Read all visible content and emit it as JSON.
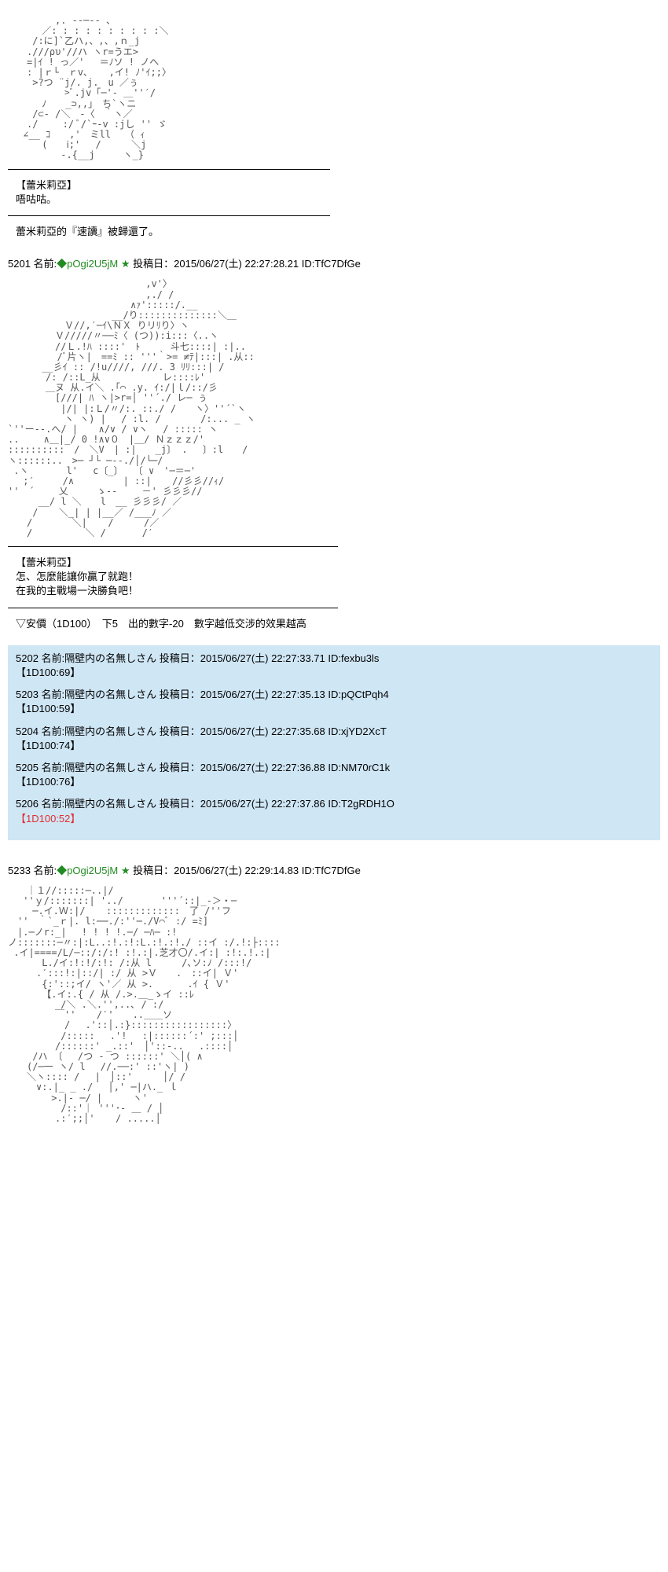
{
  "art1": "　　　　　,. --─-- 、\n　　　 ／: : : : : : : : : :＼\n　　 /:に]`乙ハ,、,、,ｎ_j\n　　.///ρυ'//ハ ヽr=うエ>\n　　=|ｲ ! っ／'　 ＝ﾉソ ! ノへ\n　　: |ｒ└　ｒv､ 　 ,イ! ﾉ'ｲ;;〉\n　　 >?つ ¨j/. j.　u ／ぅ\n　　　　　　>ﾞ.jv「─'- ＿''′/\n　　　 ﾉ　　_⊃,,｣　ち`ヽニ\n　　 /⊂- /＼　-〈　｀ヽ／\n　　./ 　　:/ ﾞ/`ｰ-v :jし '' ゞ\n　 ∠__ ｺ　　,'　ミll　　（ ｨ\n　　　 (　　ⅰ;'　 / 　　 ＼j\n　　　　 　-.{__j　　　ヽ_}",
  "char1_name": "【蕾米莉亞】",
  "char1_line": "唔咕咕。",
  "narration1": "蕾米莉亞的『速讀』被歸還了。",
  "post5201": {
    "num": "5201",
    "name_label": "名前:",
    "trip": "◆pOgi2U5jM",
    "star": "★",
    "date_label": "投稿日：",
    "date": "2015/06/27(土) 22:27:28.21",
    "id": "ID:TfC7DfGe"
  },
  "art2": "　　　　　　　　　　　　　　 ,v'〉\n　　　　　　　　　　　　　　 ,./ /\n　　　　　　　　　　　　　∧ｧ':::::/.__\n　　　　　　　　　　　__/り::::::::::::::＼＿\n　　　　　　Ｖ//,′─ｲ\\ＮＸ りリﾘり〉ヽ\n　　　　　Ｖ/////〃──ﾐ〈 (つ)):i:::〈..ヽ\n　　　　　//Ｌ.!ﾊ ::::'　ﾄ 　　 斗七::::| :|..\n　　　 　 /ﾞ片ヽ|　==ﾐ :: '''｀>= ≠ﾃ|:::| .从::\n　　　 __彡ｲ :: /!u////, ///. 3 ﾘﾘ:::| /\n　　　　/: /::L_从　　　 　　　レ::::ﾚ'\n　　　　＿ヌ 从.イ＼ .｢⌒ .y. ｲ:/|ｌ/::/彡\n　　　　　[///| ﾊ ヽ|>r=│ ''´./ レ─ ぅ\n　　　　　 |/| |:Ｌ/〃/:. ::./ /　　ヽ〉''´`ヽ\n　　　　　　ヽ ヽ) | 　/ :l. / 　　　 /:... _ ヽ\n`''ー--.へ/ | 　 ∧/∨ / ∨ヽ　 / ::::: ヽ\n.. 　　∧＿|_/ 0 !∧∨０　|＿/ Ｎｚｚｚ/'\n::::::::::　/　＼V　| :|　　_j〕 . 　〕:l　　/\nヽ::::::..　>─ ┘└ ─‐‐./│/└─/\n .ヽ　　　　l' 　c〔_〕 　〔 ∨　'─＝─'\n　 ;′　　　/∧ 　　　　 | ::| 　 //彡彡//ｨ/\n''　´　　 乂　　　ゝ-- 　　－' 彡彡彡//\n　 　 __/ l ＼　　l　__ 彡彡彡/ ／\n　　 / 　 ＼_| | |__／ /___ﾉ ／\n　　/　 　 　＼| 　 /　 　 /／\n　　/　　　　　 ＼ / 　 　 /′",
  "char2_name": "【蕾米莉亞】",
  "char2_line1": "怎、怎麼能讓你贏了就跑！",
  "char2_line2": "在我的主戰場一決勝負吧！",
  "narration2": "▽安價（1D100）　下5　出的數字-20　數字越低交涉的效果越高",
  "replies": [
    {
      "num": "5202",
      "name": "名前:隔壁内の名無しさん",
      "date": "投稿日：2015/06/27(土) 22:27:33.71",
      "id": "ID:fexbu3ls",
      "roll": "【1D100:69】",
      "selected": false
    },
    {
      "num": "5203",
      "name": "名前:隔壁内の名無しさん",
      "date": "投稿日：2015/06/27(土) 22:27:35.13",
      "id": "ID:pQCtPqh4",
      "roll": "【1D100:59】",
      "selected": false
    },
    {
      "num": "5204",
      "name": "名前:隔壁内の名無しさん",
      "date": "投稿日：2015/06/27(土) 22:27:35.68",
      "id": "ID:xjYD2XcT",
      "roll": "【1D100:74】",
      "selected": false
    },
    {
      "num": "5205",
      "name": "名前:隔壁内の名無しさん",
      "date": "投稿日：2015/06/27(土) 22:27:36.88",
      "id": "ID:NM70rC1k",
      "roll": "【1D100:76】",
      "selected": false
    },
    {
      "num": "5206",
      "name": "名前:隔壁内の名無しさん",
      "date": "投稿日：2015/06/27(土) 22:27:37.86",
      "id": "ID:T2gRDH1O",
      "roll": "【1D100:52】",
      "selected": true
    }
  ],
  "post5233": {
    "num": "5233",
    "name_label": "名前:",
    "trip": "◆pOgi2U5jM",
    "star": "★",
    "date_label": "投稿日：",
    "date": "2015/06/27(土) 22:29:14.83",
    "id": "ID:TfC7DfGe"
  },
  "art3": "　　｜１//:::::─..|/\n　 ''ｙ/:::::::| '../　　　　'''´::|_-＞・─\n　　 ─.イ.Ｗ:|/ 　 :::::::::::::　了 /''フ\n　''　｀`_ｒ|. l:──./:''─./V⌒ﾞ :/ =ﾐ]\n　|.─ノr:_| 　! ! ! !.─/ ─ﾊ─ :!\nノ:::::::─〃:|:L..:!.:!:L.:!.:!./ ::イ :/.!:├::::\n .イ|====/L/─::/:/:! :!.:|.芝才〇/.イ:| :!:.!.:|\n　　　 L./イ:!:!/:!: /:从 l　 　 /､ソ:ﾉ /:::!/\n　　　.′:::!:|::/| :/ 从 >Ｖ　　.　::イ| Ｖ'\n　　　 {:'::;イ/ ヽ'／ 从 >.　 　　.ｲ { Ｖ'\n　　　 【.イ:.{ / 从 /.>.＿_ゝイ ::ﾚ\n　　　　　 /＼ .＼.'',..､ / :/\n　　　　　￣'' 　 /′'　　..＿＿ソ\n　　　　　　/ 　.'::│.:}:::::::::::::::::〉\n　　　　　 /:::::　 .'!　 :|::::::´:' ;:::│\n　　　　　/::::::' _.::'　│'::-..　 .::::│\n　　 /ハ 〔　 /つ - つ ::::::' ＼│( ∧\n　　(/─一 ヽ/ l 　//.──:' ::'ヽ| )\n　　＼ヽ:::: /　 |　│::'　 　 │/ /\n　　　∨:.|_ _ ./　 │,' ─|ハ._ ｌ\n　　　　 >.|- ─/ | 　　 ヽ'\n　　　　　 /::'｜ '''･- ＿ / │\n　　　　　.:′;;│' 　 / .....│"
}
